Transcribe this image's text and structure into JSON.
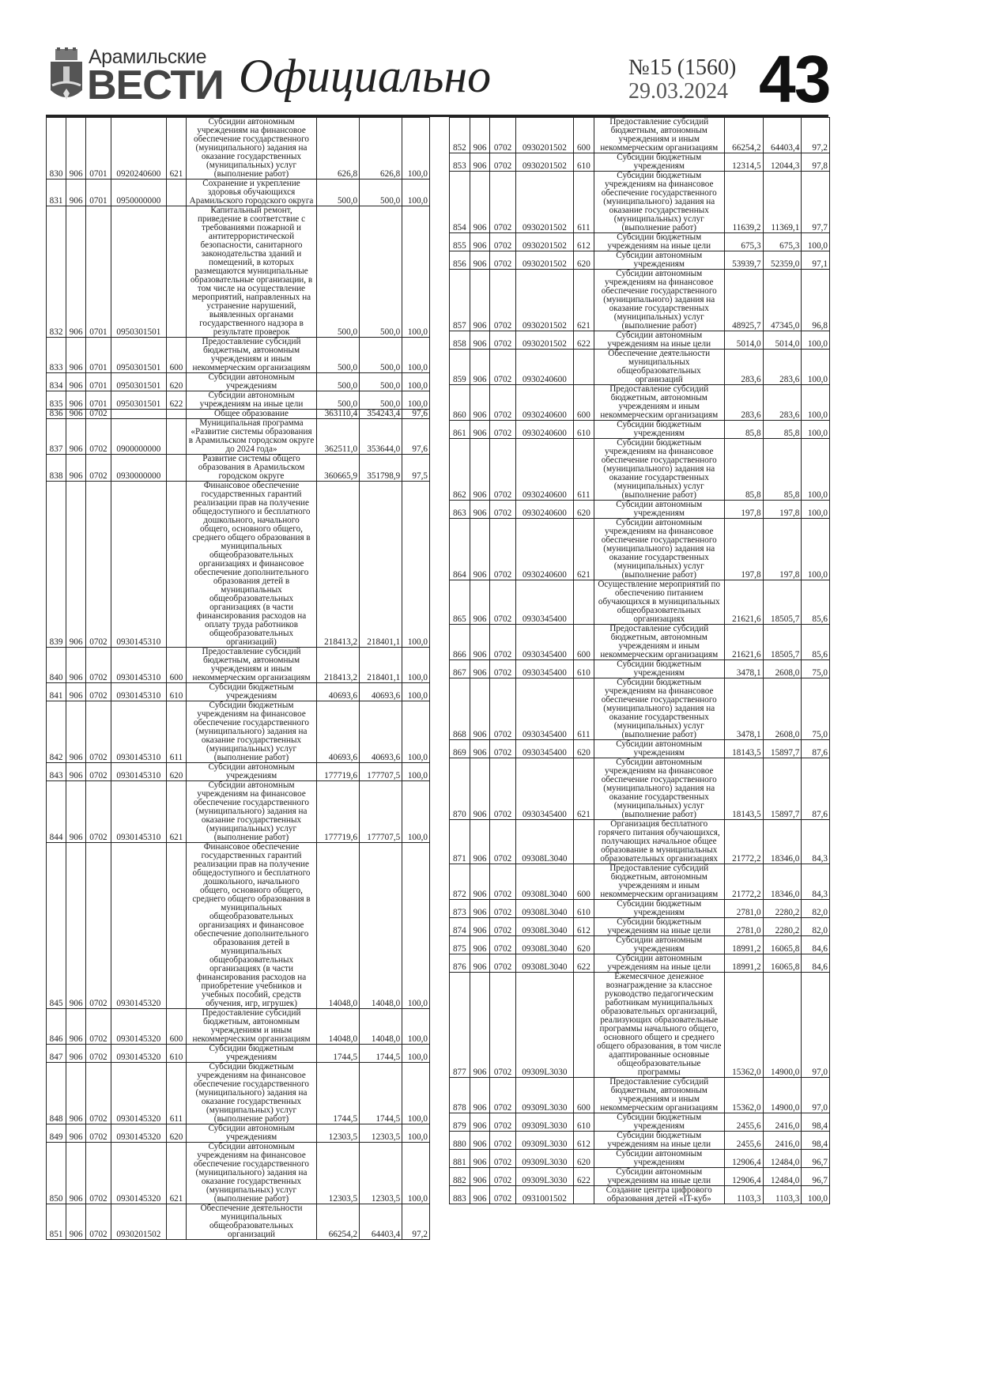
{
  "header": {
    "brand_top": "Арамильские",
    "brand_main": "ВЕСТИ",
    "section": "Официально",
    "issue": "№15 (1560)",
    "date": "29.03.2024",
    "page_number": "43"
  },
  "tables": {
    "left": [
      [
        "830",
        "906",
        "0701",
        "0920240600",
        "621",
        "Субсидии автономным учреждениям на финансовое обеспечение государственного (муниципального) задания на оказание государственных (муниципальных) услуг (выполнение работ)",
        "626,8",
        "626,8",
        "100,0"
      ],
      [
        "831",
        "906",
        "0701",
        "0950000000",
        "",
        "Сохранение и укрепление здоровья обучающихся Арамильского городского округа",
        "500,0",
        "500,0",
        "100,0"
      ],
      [
        "832",
        "906",
        "0701",
        "0950301501",
        "",
        "Капитальный ремонт, приведение в соответствие с требованиями пожарной и антитеррористической безопасности, санитарного законодательства зданий и помещений, в которых размещаются муниципальные образовательные организации, в том числе на осуществление мероприятий, направленных на устранение нарушений, выявленных органами государственного надзора в результате проверок",
        "500,0",
        "500,0",
        "100,0"
      ],
      [
        "833",
        "906",
        "0701",
        "0950301501",
        "600",
        "Предоставление субсидий бюджетным, автономным учреждениям и иным некоммерческим организациям",
        "500,0",
        "500,0",
        "100,0"
      ],
      [
        "834",
        "906",
        "0701",
        "0950301501",
        "620",
        "Субсидии автономным учреждениям",
        "500,0",
        "500,0",
        "100,0"
      ],
      [
        "835",
        "906",
        "0701",
        "0950301501",
        "622",
        "Субсидии автономным учреждениям на иные цели",
        "500,0",
        "500,0",
        "100,0"
      ],
      [
        "836",
        "906",
        "0702",
        "",
        "",
        "Общее образование",
        "363110,4",
        "354243,4",
        "97,6"
      ],
      [
        "837",
        "906",
        "0702",
        "0900000000",
        "",
        "Муниципальная программа «Развитие системы образования в Арамильском городском округе до 2024 года»",
        "362511,0",
        "353644,0",
        "97,6"
      ],
      [
        "838",
        "906",
        "0702",
        "0930000000",
        "",
        "Развитие системы общего образования в Арамильском городском округе",
        "360665,9",
        "351798,9",
        "97,5"
      ],
      [
        "839",
        "906",
        "0702",
        "0930145310",
        "",
        "Финансовое обеспечение государственных гарантий реализации прав на получение общедоступного и бесплатного дошкольного, начального общего, основного общего, среднего общего образования в муниципальных общеобразовательных организациях и финансовое обеспечение дополнительного образования детей в муниципальных общеобразовательных организациях (в части финансирования расходов на оплату труда работников общеобразовательных организаций)",
        "218413,2",
        "218401,1",
        "100,0"
      ],
      [
        "840",
        "906",
        "0702",
        "0930145310",
        "600",
        "Предоставление субсидий бюджетным, автономным учреждениям и иным некоммерческим организациям",
        "218413,2",
        "218401,1",
        "100,0"
      ],
      [
        "841",
        "906",
        "0702",
        "0930145310",
        "610",
        "Субсидии бюджетным учреждениям",
        "40693,6",
        "40693,6",
        "100,0"
      ],
      [
        "842",
        "906",
        "0702",
        "0930145310",
        "611",
        "Субсидии бюджетным учреждениям на финансовое обеспечение государственного (муниципального) задания на оказание государственных (муниципальных) услуг (выполнение работ)",
        "40693,6",
        "40693,6",
        "100,0"
      ],
      [
        "843",
        "906",
        "0702",
        "0930145310",
        "620",
        "Субсидии автономным учреждениям",
        "177719,6",
        "177707,5",
        "100,0"
      ],
      [
        "844",
        "906",
        "0702",
        "0930145310",
        "621",
        "Субсидии автономным учреждениям на финансовое обеспечение государственного (муниципального) задания на оказание государственных (муниципальных) услуг (выполнение работ)",
        "177719,6",
        "177707,5",
        "100,0"
      ],
      [
        "845",
        "906",
        "0702",
        "0930145320",
        "",
        "Финансовое обеспечение государственных гарантий реализации прав на получение общедоступного и бесплатного дошкольного, начального общего, основного общего, среднего общего образования в муниципальных общеобразовательных организациях и финансовое обеспечение дополнительного образования детей в муниципальных общеобразовательных организациях (в части финансирования расходов на приобретение учебников и учебных пособий, средств обучения, игр, игрушек)",
        "14048,0",
        "14048,0",
        "100,0"
      ],
      [
        "846",
        "906",
        "0702",
        "0930145320",
        "600",
        "Предоставление субсидий бюджетным, автономным учреждениям и иным некоммерческим организациям",
        "14048,0",
        "14048,0",
        "100,0"
      ],
      [
        "847",
        "906",
        "0702",
        "0930145320",
        "610",
        "Субсидии бюджетным учреждениям",
        "1744,5",
        "1744,5",
        "100,0"
      ],
      [
        "848",
        "906",
        "0702",
        "0930145320",
        "611",
        "Субсидии бюджетным учреждениям на финансовое обеспечение государственного (муниципального) задания на оказание государственных (муниципальных) услуг (выполнение работ)",
        "1744,5",
        "1744,5",
        "100,0"
      ],
      [
        "849",
        "906",
        "0702",
        "0930145320",
        "620",
        "Субсидии автономным учреждениям",
        "12303,5",
        "12303,5",
        "100,0"
      ],
      [
        "850",
        "906",
        "0702",
        "0930145320",
        "621",
        "Субсидии автономным учреждениям на финансовое обеспечение государственного (муниципального) задания на оказание государственных (муниципальных) услуг (выполнение работ)",
        "12303,5",
        "12303,5",
        "100,0"
      ],
      [
        "851",
        "906",
        "0702",
        "0930201502",
        "",
        "Обеспечение деятельности муниципальных общеобразовательных организаций",
        "66254,2",
        "64403,4",
        "97,2"
      ]
    ],
    "right": [
      [
        "852",
        "906",
        "0702",
        "0930201502",
        "600",
        "Предоставление субсидий бюджетным, автономным учреждениям и иным некоммерческим организациям",
        "66254,2",
        "64403,4",
        "97,2"
      ],
      [
        "853",
        "906",
        "0702",
        "0930201502",
        "610",
        "Субсидии бюджетным учреждениям",
        "12314,5",
        "12044,3",
        "97,8"
      ],
      [
        "854",
        "906",
        "0702",
        "0930201502",
        "611",
        "Субсидии бюджетным учреждениям на финансовое обеспечение государственного (муниципального) задания на оказание государственных (муниципальных) услуг (выполнение работ)",
        "11639,2",
        "11369,1",
        "97,7"
      ],
      [
        "855",
        "906",
        "0702",
        "0930201502",
        "612",
        "Субсидии бюджетным учреждениям на иные цели",
        "675,3",
        "675,3",
        "100,0"
      ],
      [
        "856",
        "906",
        "0702",
        "0930201502",
        "620",
        "Субсидии автономным учреждениям",
        "53939,7",
        "52359,0",
        "97,1"
      ],
      [
        "857",
        "906",
        "0702",
        "0930201502",
        "621",
        "Субсидии автономным учреждениям на финансовое обеспечение государственного (муниципального) задания на оказание государственных (муниципальных) услуг (выполнение работ)",
        "48925,7",
        "47345,0",
        "96,8"
      ],
      [
        "858",
        "906",
        "0702",
        "0930201502",
        "622",
        "Субсидии автономным учреждениям на иные цели",
        "5014,0",
        "5014,0",
        "100,0"
      ],
      [
        "859",
        "906",
        "0702",
        "0930240600",
        "",
        "Обеспечение деятельности муниципальных общеобразовательных организаций",
        "283,6",
        "283,6",
        "100,0"
      ],
      [
        "860",
        "906",
        "0702",
        "0930240600",
        "600",
        "Предоставление субсидий бюджетным, автономным учреждениям и иным некоммерческим организациям",
        "283,6",
        "283,6",
        "100,0"
      ],
      [
        "861",
        "906",
        "0702",
        "0930240600",
        "610",
        "Субсидии бюджетным учреждениям",
        "85,8",
        "85,8",
        "100,0"
      ],
      [
        "862",
        "906",
        "0702",
        "0930240600",
        "611",
        "Субсидии бюджетным учреждениям на финансовое обеспечение государственного (муниципального) задания на оказание государственных (муниципальных) услуг (выполнение работ)",
        "85,8",
        "85,8",
        "100,0"
      ],
      [
        "863",
        "906",
        "0702",
        "0930240600",
        "620",
        "Субсидии автономным учреждениям",
        "197,8",
        "197,8",
        "100,0"
      ],
      [
        "864",
        "906",
        "0702",
        "0930240600",
        "621",
        "Субсидии автономным учреждениям на финансовое обеспечение государственного (муниципального) задания на оказание государственных (муниципальных) услуг (выполнение работ)",
        "197,8",
        "197,8",
        "100,0"
      ],
      [
        "865",
        "906",
        "0702",
        "0930345400",
        "",
        "Осуществление мероприятий по обеспечению питанием обучающихся в муниципальных общеобразовательных организациях",
        "21621,6",
        "18505,7",
        "85,6"
      ],
      [
        "866",
        "906",
        "0702",
        "0930345400",
        "600",
        "Предоставление субсидий бюджетным, автономным учреждениям и иным некоммерческим организациям",
        "21621,6",
        "18505,7",
        "85,6"
      ],
      [
        "867",
        "906",
        "0702",
        "0930345400",
        "610",
        "Субсидии бюджетным учреждениям",
        "3478,1",
        "2608,0",
        "75,0"
      ],
      [
        "868",
        "906",
        "0702",
        "0930345400",
        "611",
        "Субсидии бюджетным учреждениям на финансовое обеспечение государственного (муниципального) задания на оказание государственных (муниципальных) услуг (выполнение работ)",
        "3478,1",
        "2608,0",
        "75,0"
      ],
      [
        "869",
        "906",
        "0702",
        "0930345400",
        "620",
        "Субсидии автономным учреждениям",
        "18143,5",
        "15897,7",
        "87,6"
      ],
      [
        "870",
        "906",
        "0702",
        "0930345400",
        "621",
        "Субсидии автономным учреждениям на финансовое обеспечение государственного (муниципального) задания на оказание государственных (муниципальных) услуг (выполнение работ)",
        "18143,5",
        "15897,7",
        "87,6"
      ],
      [
        "871",
        "906",
        "0702",
        "09308L3040",
        "",
        "Организация бесплатного горячего питания обучающихся, получающих начальное общее образование в муниципальных образовательных организациях",
        "21772,2",
        "18346,0",
        "84,3"
      ],
      [
        "872",
        "906",
        "0702",
        "09308L3040",
        "600",
        "Предоставление субсидий бюджетным, автономным учреждениям и иным некоммерческим организациям",
        "21772,2",
        "18346,0",
        "84,3"
      ],
      [
        "873",
        "906",
        "0702",
        "09308L3040",
        "610",
        "Субсидии бюджетным учреждениям",
        "2781,0",
        "2280,2",
        "82,0"
      ],
      [
        "874",
        "906",
        "0702",
        "09308L3040",
        "612",
        "Субсидии бюджетным учреждениям на иные цели",
        "2781,0",
        "2280,2",
        "82,0"
      ],
      [
        "875",
        "906",
        "0702",
        "09308L3040",
        "620",
        "Субсидии автономным учреждениям",
        "18991,2",
        "16065,8",
        "84,6"
      ],
      [
        "876",
        "906",
        "0702",
        "09308L3040",
        "622",
        "Субсидии автономным учреждениям на иные цели",
        "18991,2",
        "16065,8",
        "84,6"
      ],
      [
        "877",
        "906",
        "0702",
        "09309L3030",
        "",
        "Ежемесячное денежное вознаграждение за классное руководство педагогическим работникам муниципальных образовательных организаций, реализующих образовательные программы начального общего, основного общего и среднего общего образования, в том числе адаптированные основные общеобразовательные программы",
        "15362,0",
        "14900,0",
        "97,0"
      ],
      [
        "878",
        "906",
        "0702",
        "09309L3030",
        "600",
        "Предоставление субсидий бюджетным, автономным учреждениям и иным некоммерческим организациям",
        "15362,0",
        "14900,0",
        "97,0"
      ],
      [
        "879",
        "906",
        "0702",
        "09309L3030",
        "610",
        "Субсидии бюджетным учреждениям",
        "2455,6",
        "2416,0",
        "98,4"
      ],
      [
        "880",
        "906",
        "0702",
        "09309L3030",
        "612",
        "Субсидии бюджетным учреждениям на иные цели",
        "2455,6",
        "2416,0",
        "98,4"
      ],
      [
        "881",
        "906",
        "0702",
        "09309L3030",
        "620",
        "Субсидии автономным учреждениям",
        "12906,4",
        "12484,0",
        "96,7"
      ],
      [
        "882",
        "906",
        "0702",
        "09309L3030",
        "622",
        "Субсидии автономным учреждениям на иные цели",
        "12906,4",
        "12484,0",
        "96,7"
      ],
      [
        "883",
        "906",
        "0702",
        "0931001502",
        "",
        "Создание центра цифрового образования детей «IT-куб»",
        "1103,3",
        "1103,3",
        "100,0"
      ]
    ]
  }
}
